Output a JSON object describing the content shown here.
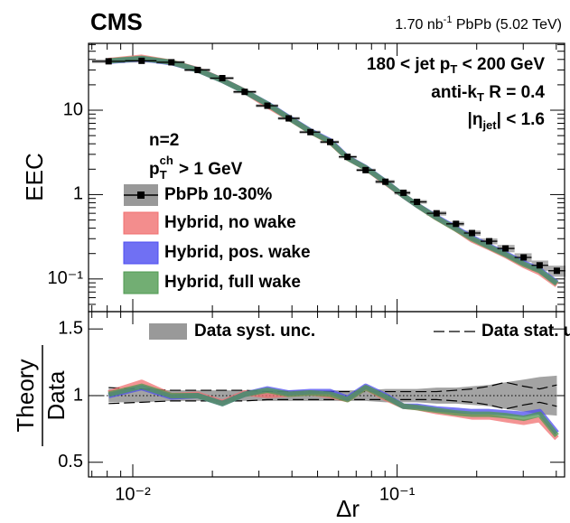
{
  "chart_data": [
    {
      "type": "line",
      "title": "CMS",
      "subtitle": [
        "1.70 nb",
        "-1",
        " PbPb (5.02 TeV)"
      ],
      "annotations": [
        [
          "180 < jet p",
          "T",
          " < 200 GeV"
        ],
        [
          "anti-k",
          "T",
          " R = 0.4"
        ],
        [
          "|η",
          "jet",
          "| < 1.6"
        ],
        "n=2",
        [
          "p",
          "ch",
          "T",
          " > 1 GeV"
        ]
      ],
      "ylabel": "EEC",
      "log_x": true,
      "log_y": true,
      "x": [
        0.0081,
        0.0108,
        0.014,
        0.0176,
        0.0218,
        0.0265,
        0.0323,
        0.0389,
        0.047,
        0.0558,
        0.0649,
        0.076,
        0.0903,
        0.1057,
        0.1189,
        0.141,
        0.167,
        0.192,
        0.223,
        0.257,
        0.301,
        0.346,
        0.402
      ],
      "xlim": [
        0.0068,
        0.43
      ],
      "xticks": [
        {
          "value": 0.01,
          "label": "10⁻²"
        },
        {
          "value": 0.1,
          "label": "10⁻¹"
        }
      ],
      "xminor": [
        0.007,
        0.008,
        0.009,
        0.02,
        0.03,
        0.04,
        0.05,
        0.06,
        0.07,
        0.08,
        0.09,
        0.2,
        0.3,
        0.4
      ],
      "ylim": [
        0.041,
        62
      ],
      "yticks": [
        {
          "value": 0.1,
          "label": "10⁻¹"
        },
        1,
        10
      ],
      "yminor": [
        0.05,
        0.06,
        0.07,
        0.08,
        0.09,
        0.2,
        0.3,
        0.4,
        0.5,
        0.6,
        0.7,
        0.8,
        0.9,
        2,
        3,
        4,
        5,
        6,
        7,
        8,
        9,
        20,
        30,
        40,
        50,
        60
      ],
      "series": [
        {
          "name": "PbPb 10-30%",
          "color": "#000000",
          "values": [
            38,
            38.5,
            37,
            30,
            24,
            16.5,
            11.3,
            8.0,
            5.5,
            4.2,
            2.8,
            1.95,
            1.42,
            1.05,
            0.82,
            0.6,
            0.45,
            0.35,
            0.28,
            0.23,
            0.18,
            0.145,
            0.125
          ]
        },
        {
          "name": "Hybrid, no wake",
          "color": "#f07070",
          "values": [
            38.8,
            42.4,
            37,
            30.3,
            22.8,
            16.8,
            11.3,
            8.1,
            5.6,
            4.2,
            2.72,
            2.07,
            1.39,
            0.97,
            0.75,
            0.53,
            0.39,
            0.29,
            0.235,
            0.19,
            0.145,
            0.119,
            0.085
          ]
        },
        {
          "name": "Hybrid, pos. wake",
          "color": "#4c4cf0",
          "values": [
            38,
            40.8,
            36.6,
            30,
            22.6,
            16.7,
            11.9,
            8.2,
            5.67,
            4.33,
            2.74,
            2.09,
            1.42,
            0.97,
            0.75,
            0.54,
            0.4,
            0.31,
            0.245,
            0.2,
            0.155,
            0.128,
            0.09
          ]
        },
        {
          "name": "Hybrid, full wake",
          "color": "#4f9a50",
          "values": [
            38.4,
            41.2,
            37,
            30,
            22.6,
            16.7,
            11.8,
            8.1,
            5.6,
            4.24,
            2.72,
            2.07,
            1.41,
            0.97,
            0.75,
            0.53,
            0.39,
            0.3,
            0.24,
            0.195,
            0.15,
            0.125,
            0.088
          ]
        }
      ]
    },
    {
      "type": "ratio",
      "xlabel": "Δr",
      "ylabel": [
        "Theory",
        "Data"
      ],
      "ylim": [
        0.39,
        1.63
      ],
      "yticks": [
        0.5,
        1,
        1.5
      ],
      "reference": 1,
      "syst": {
        "name": "Data syst. unc.",
        "color": "#999999",
        "values": [
          0.05,
          0.05,
          0.04,
          0.04,
          0.04,
          0.04,
          0.04,
          0.04,
          0.04,
          0.04,
          0.04,
          0.04,
          0.05,
          0.05,
          0.05,
          0.06,
          0.06,
          0.07,
          0.08,
          0.1,
          0.12,
          0.14,
          0.15
        ]
      },
      "stat": {
        "name": "Data stat. unc.",
        "color": "#000000",
        "values": [
          0.06,
          0.05,
          0.04,
          0.04,
          0.04,
          0.04,
          0.03,
          0.03,
          0.03,
          0.03,
          0.03,
          0.03,
          0.03,
          0.03,
          0.03,
          0.03,
          0.04,
          0.05,
          0.07,
          0.1,
          0.07,
          0.05,
          0.08
        ]
      },
      "series": [
        {
          "color": "#f07070",
          "values": [
            1.02,
            1.1,
            1.0,
            1.01,
            0.95,
            1.02,
            1.0,
            1.01,
            1.02,
            1.0,
            0.97,
            1.06,
            0.98,
            0.92,
            0.91,
            0.88,
            0.86,
            0.84,
            0.84,
            0.82,
            0.8,
            0.82,
            0.68
          ]
        },
        {
          "color": "#4c4cf0",
          "values": [
            1.0,
            1.06,
            0.99,
            1.0,
            0.94,
            1.01,
            1.05,
            1.02,
            1.03,
            1.03,
            0.98,
            1.07,
            1.0,
            0.92,
            0.92,
            0.9,
            0.89,
            0.88,
            0.88,
            0.87,
            0.86,
            0.88,
            0.72
          ]
        },
        {
          "color": "#4f9a50",
          "values": [
            1.01,
            1.07,
            1.0,
            1.0,
            0.94,
            1.01,
            1.04,
            1.01,
            1.02,
            1.01,
            0.97,
            1.06,
            0.99,
            0.92,
            0.91,
            0.89,
            0.87,
            0.86,
            0.86,
            0.85,
            0.83,
            0.86,
            0.7
          ]
        }
      ]
    }
  ]
}
